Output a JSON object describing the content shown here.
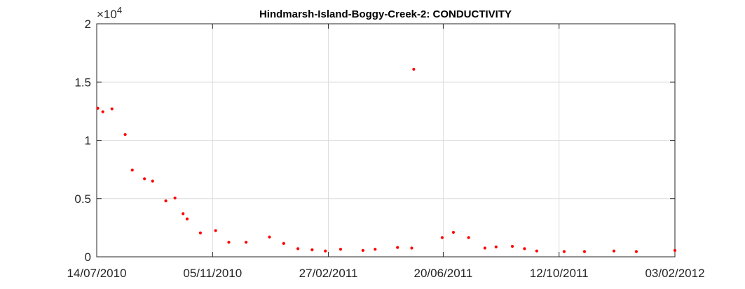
{
  "chart_data": {
    "type": "scatter",
    "title": "Hindmarsh-Island-Boggy-Creek-2: CONDUCTIVITY",
    "xlabel": "",
    "ylabel": "",
    "y_multiplier": {
      "base": "×10",
      "exponent": "4"
    },
    "x_ticks": [
      "14/07/2010",
      "05/11/2010",
      "27/02/2011",
      "20/06/2011",
      "12/10/2011",
      "03/02/2012"
    ],
    "x_tick_values": [
      0,
      114,
      228,
      341,
      455,
      569
    ],
    "y_ticks": [
      "0",
      "0.5",
      "1",
      "1.5",
      "2"
    ],
    "y_tick_values": [
      0,
      0.5,
      1,
      1.5,
      2
    ],
    "xlim": [
      0,
      569
    ],
    "ylim": [
      0,
      2
    ],
    "grid": true,
    "marker_color": "#ff0000",
    "series": [
      {
        "x": [
          1,
          6,
          15,
          28,
          35,
          47,
          55,
          68,
          77,
          85,
          89,
          102,
          117,
          130,
          147,
          170,
          184,
          198,
          212,
          225,
          240,
          262,
          274,
          296,
          310,
          312,
          340,
          351,
          366,
          382,
          393,
          409,
          421,
          433,
          460,
          480,
          509,
          531,
          569
        ],
        "y": [
          1.275,
          1.245,
          1.27,
          1.05,
          0.745,
          0.67,
          0.65,
          0.48,
          0.505,
          0.37,
          0.325,
          0.205,
          0.225,
          0.125,
          0.125,
          0.17,
          0.115,
          0.07,
          0.06,
          0.05,
          0.065,
          0.055,
          0.065,
          0.08,
          0.075,
          1.61,
          0.165,
          0.21,
          0.165,
          0.075,
          0.085,
          0.09,
          0.07,
          0.05,
          0.045,
          0.045,
          0.05,
          0.045,
          0.055
        ]
      }
    ]
  }
}
